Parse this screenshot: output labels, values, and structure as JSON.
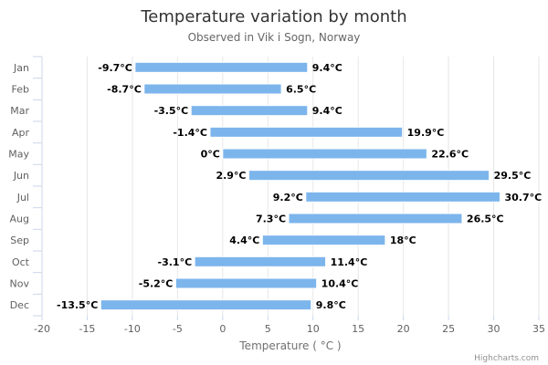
{
  "chart_data": {
    "type": "bar",
    "orientation": "horizontal-range",
    "title": "Temperature variation by month",
    "subtitle": "Observed in Vik i Sogn, Norway",
    "xlabel": "Temperature ( °C )",
    "ylabel": "",
    "categories": [
      "Jan",
      "Feb",
      "Mar",
      "Apr",
      "May",
      "Jun",
      "Jul",
      "Aug",
      "Sep",
      "Oct",
      "Nov",
      "Dec"
    ],
    "series": [
      {
        "low": [
          -9.7,
          -8.7,
          -3.5,
          -1.4,
          0,
          2.9,
          9.2,
          7.3,
          4.4,
          -3.1,
          -5.2,
          -13.5
        ],
        "high": [
          9.4,
          6.5,
          9.4,
          19.9,
          22.6,
          29.5,
          30.7,
          26.5,
          18,
          11.4,
          10.4,
          9.8
        ],
        "low_labels": [
          "-9.7°C",
          "-8.7°C",
          "-3.5°C",
          "-1.4°C",
          "0°C",
          "2.9°C",
          "9.2°C",
          "7.3°C",
          "4.4°C",
          "-3.1°C",
          "-5.2°C",
          "-13.5°C"
        ],
        "high_labels": [
          "9.4°C",
          "6.5°C",
          "9.4°C",
          "19.9°C",
          "22.6°C",
          "29.5°C",
          "30.7°C",
          "26.5°C",
          "18°C",
          "11.4°C",
          "10.4°C",
          "9.8°C"
        ],
        "color": "#7cb5ec"
      }
    ],
    "xlim": [
      -20,
      35
    ],
    "xticks": [
      -20,
      -15,
      -10,
      -5,
      0,
      5,
      10,
      15,
      20,
      25,
      30,
      35
    ],
    "xtick_labels": [
      "-20",
      "-15",
      "-10",
      "-5",
      "0",
      "5",
      "10",
      "15",
      "20",
      "25",
      "30",
      "35"
    ],
    "grid": true,
    "legend": "none",
    "credits": "Highcharts.com"
  }
}
